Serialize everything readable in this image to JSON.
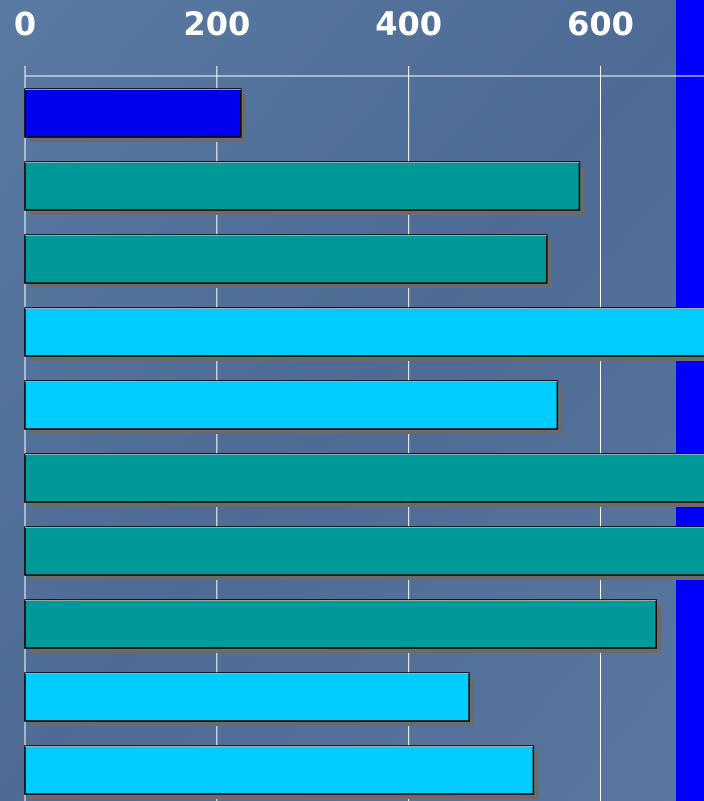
{
  "chart_data": {
    "type": "bar",
    "orientation": "horizontal",
    "title": "",
    "xlabel": "",
    "ylabel": "",
    "xlim": [
      0,
      700
    ],
    "x_ticks": [
      0,
      200,
      400,
      600
    ],
    "x_tick_labels": [
      "0",
      "200",
      "400",
      "600"
    ],
    "grid": true,
    "legend": "none",
    "values": [
      225,
      578,
      544,
      710,
      555,
      710,
      710,
      658,
      463,
      530
    ],
    "bar_colors": [
      "#0000ee",
      "#009999",
      "#009999",
      "#00ccff",
      "#00ccff",
      "#009999",
      "#009999",
      "#009999",
      "#00ccff",
      "#00ccff"
    ]
  },
  "colors": {
    "background": "#4f6d96",
    "grid": "#ffffff",
    "accent_strip": "#0000ff",
    "bar_shadow": "#6b6b6b"
  }
}
